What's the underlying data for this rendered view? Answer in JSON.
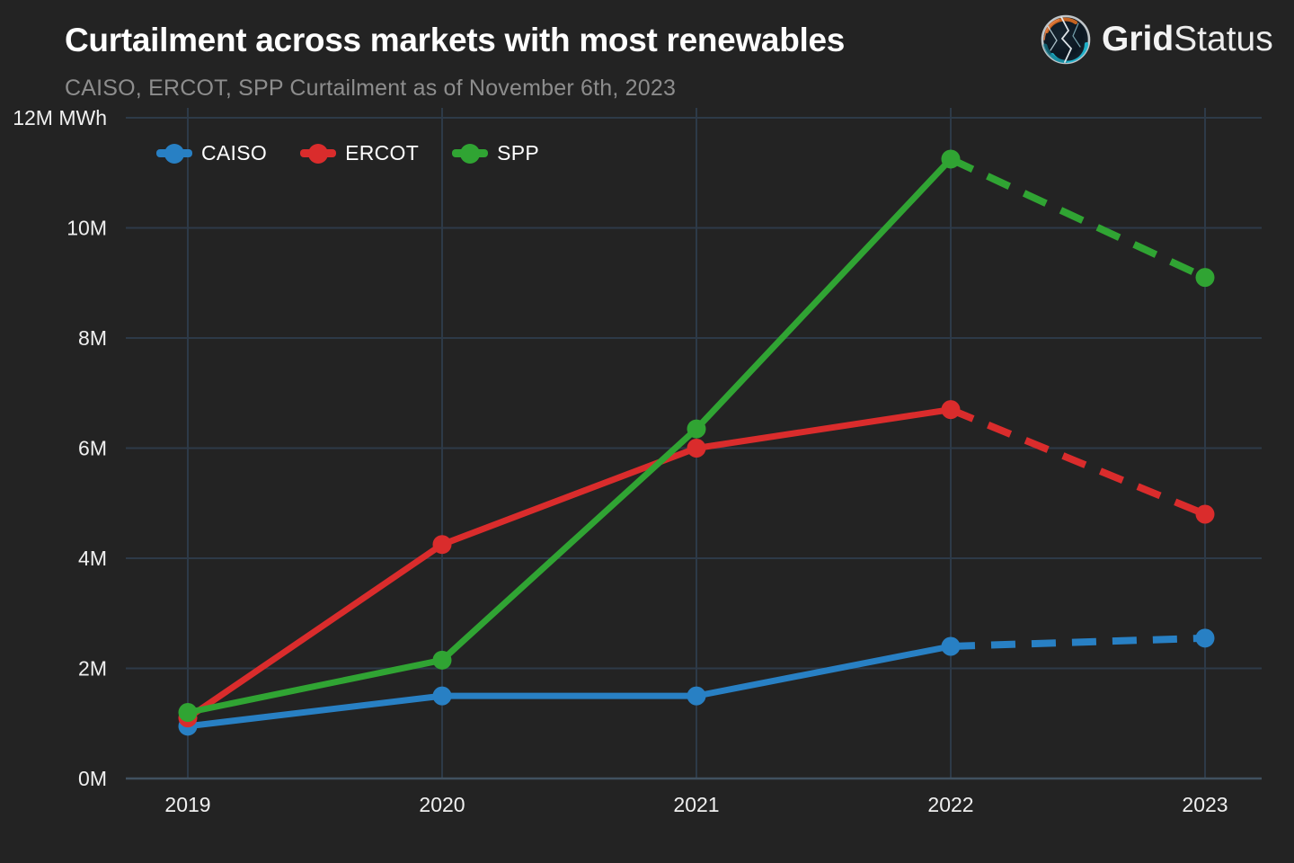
{
  "header": {
    "title": "Curtailment across markets with most renewables",
    "subtitle": "CAISO, ERCOT, SPP Curtailment as of November 6th, 2023"
  },
  "logo": {
    "brand_bold": "Grid",
    "brand_light": "Status"
  },
  "colors": {
    "background": "#232323",
    "grid_line": "#2d3a48",
    "axis_line": "#40505f",
    "tick_text": "#f0f0f0",
    "title_text": "#ffffff",
    "subtitle_text": "#8d8d8d",
    "caiso": "#2880c4",
    "ercot": "#da2c2c",
    "spp": "#30a433"
  },
  "chart_data": {
    "type": "line",
    "title": "Curtailment across markets with most renewables",
    "subtitle": "CAISO, ERCOT, SPP Curtailment as of November 6th, 2023",
    "x_labels": [
      "2019",
      "2020",
      "2021",
      "2022",
      "2023"
    ],
    "y_unit": "MWh",
    "ylim": [
      0,
      12
    ],
    "y_ticks": [
      {
        "value": 0,
        "label": "0M"
      },
      {
        "value": 2,
        "label": "2M"
      },
      {
        "value": 4,
        "label": "4M"
      },
      {
        "value": 6,
        "label": "6M"
      },
      {
        "value": 8,
        "label": "8M"
      },
      {
        "value": 10,
        "label": "10M"
      },
      {
        "value": 12,
        "label": "12M MWh"
      }
    ],
    "grid": true,
    "legend_position": "top-left",
    "legend_entries": [
      "CAISO",
      "ERCOT",
      "SPP"
    ],
    "series": [
      {
        "name": "CAISO",
        "color": "#2880c4",
        "values": [
          0.95,
          1.5,
          1.5,
          2.4,
          2.55
        ],
        "dashed_from_index": 3
      },
      {
        "name": "ERCOT",
        "color": "#da2c2c",
        "values": [
          1.1,
          4.25,
          6.0,
          6.7,
          4.8
        ],
        "dashed_from_index": 3
      },
      {
        "name": "SPP",
        "color": "#30a433",
        "values": [
          1.2,
          2.15,
          6.35,
          11.25,
          9.1
        ],
        "dashed_from_index": 3
      }
    ]
  }
}
